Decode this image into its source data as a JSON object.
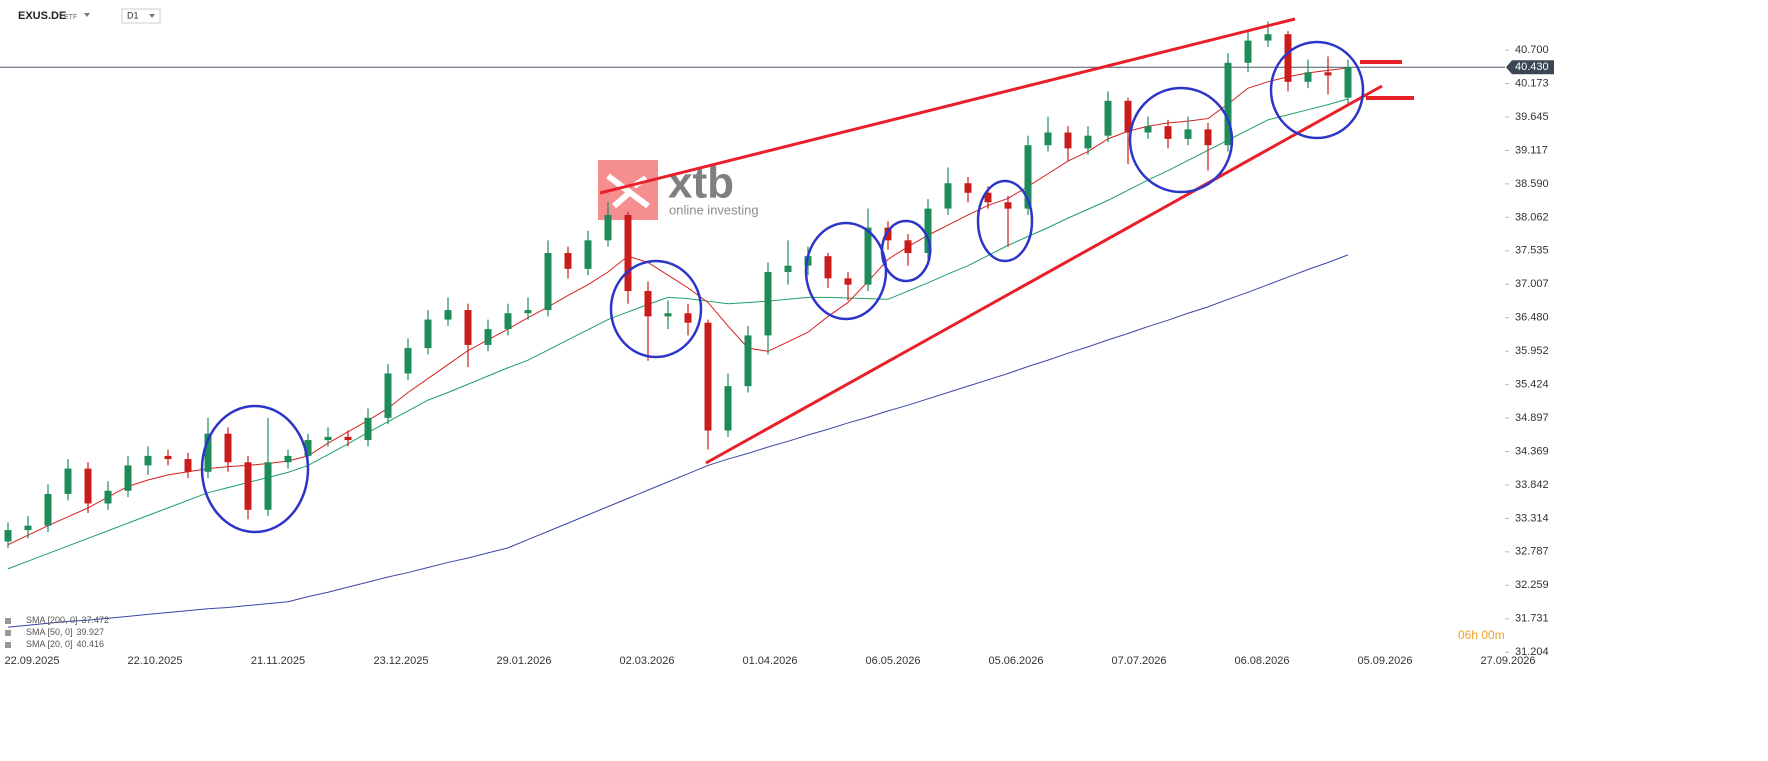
{
  "chart_data": {
    "type": "candlestick",
    "symbol": "EXUS.DE",
    "instrument_type": "ETF",
    "interval": "D1",
    "watermark": "xtb",
    "watermark_subtitle": "online investing",
    "countdown": "06h 00m",
    "up_color": "#1e8c5a",
    "down_color": "#cc1b1b",
    "ylim": [
      31.16,
      41.49
    ],
    "yticks": [
      {
        "value": 40.7,
        "label": "40.700"
      },
      {
        "value": 40.173,
        "label": "40.173"
      },
      {
        "value": 39.645,
        "label": "39.645"
      },
      {
        "value": 39.117,
        "label": "39.117"
      },
      {
        "value": 38.59,
        "label": "38.590"
      },
      {
        "value": 38.062,
        "label": "38.062"
      },
      {
        "value": 37.535,
        "label": "37.535"
      },
      {
        "value": 37.007,
        "label": "37.007"
      },
      {
        "value": 36.48,
        "label": "36.480"
      },
      {
        "value": 35.952,
        "label": "35.952"
      },
      {
        "value": 35.424,
        "label": "35.424"
      },
      {
        "value": 34.897,
        "label": "34.897"
      },
      {
        "value": 34.369,
        "label": "34.369"
      },
      {
        "value": 33.842,
        "label": "33.842"
      },
      {
        "value": 33.314,
        "label": "33.314"
      },
      {
        "value": 32.787,
        "label": "32.787"
      },
      {
        "value": 32.259,
        "label": "32.259"
      },
      {
        "value": 31.731,
        "label": "31.731"
      },
      {
        "value": 31.204,
        "label": "31.204"
      }
    ],
    "last_price": {
      "value": 40.43,
      "label": "40.430"
    },
    "x_labels": [
      "22.09.2025",
      "22.10.2025",
      "21.11.2025",
      "23.12.2025",
      "29.01.2026",
      "02.03.2026",
      "01.04.2026",
      "06.05.2026",
      "05.06.2026",
      "07.07.2026",
      "06.08.2026",
      "05.09.2026",
      "27.09.2026"
    ],
    "open": [
      32.95,
      33.13,
      33.2,
      33.7,
      34.1,
      33.55,
      33.75,
      34.15,
      34.3,
      34.25,
      34.05,
      34.65,
      34.2,
      33.45,
      34.2,
      34.3,
      34.55,
      34.6,
      34.55,
      34.9,
      35.6,
      36.0,
      36.45,
      36.6,
      36.05,
      36.3,
      36.55,
      36.6,
      37.5,
      37.25,
      37.7,
      38.1,
      36.9,
      36.5,
      36.55,
      36.4,
      34.7,
      35.4,
      36.2,
      37.2,
      37.3,
      37.45,
      37.1,
      37.0,
      37.9,
      37.7,
      37.5,
      38.2,
      38.6,
      38.45,
      38.3,
      38.2,
      39.2,
      39.4,
      39.15,
      39.35,
      39.9,
      39.4,
      39.5,
      39.3,
      39.45,
      39.2,
      40.5,
      40.85,
      40.95,
      40.2,
      40.35,
      39.95
    ],
    "high": [
      33.25,
      33.35,
      33.85,
      34.25,
      34.2,
      33.9,
      34.3,
      34.45,
      34.4,
      34.35,
      34.9,
      34.75,
      34.3,
      34.9,
      34.4,
      34.65,
      34.75,
      34.7,
      35.05,
      35.75,
      36.15,
      36.6,
      36.8,
      36.7,
      36.45,
      36.7,
      36.8,
      37.7,
      37.6,
      37.85,
      38.3,
      38.15,
      37.05,
      36.75,
      36.7,
      36.45,
      35.6,
      36.35,
      37.35,
      37.7,
      37.6,
      37.5,
      37.2,
      38.2,
      38.0,
      37.8,
      38.35,
      38.85,
      38.7,
      38.55,
      38.4,
      39.35,
      39.65,
      39.5,
      39.5,
      40.05,
      39.95,
      39.65,
      39.6,
      39.65,
      39.55,
      40.65,
      41.0,
      41.15,
      41.0,
      40.55,
      40.6,
      40.55
    ],
    "low": [
      32.85,
      33.0,
      33.1,
      33.6,
      33.4,
      33.45,
      33.65,
      34.0,
      34.15,
      33.95,
      33.95,
      34.05,
      33.3,
      33.35,
      34.1,
      34.2,
      34.45,
      34.45,
      34.45,
      34.8,
      35.5,
      35.9,
      36.35,
      35.7,
      35.95,
      36.2,
      36.45,
      36.5,
      37.1,
      37.15,
      37.6,
      36.7,
      35.8,
      36.3,
      36.2,
      34.4,
      34.6,
      35.3,
      35.9,
      37.0,
      37.15,
      36.95,
      36.75,
      36.9,
      37.55,
      37.3,
      37.4,
      38.1,
      38.3,
      38.2,
      37.6,
      38.1,
      39.1,
      38.95,
      39.05,
      39.25,
      38.9,
      39.3,
      39.15,
      39.2,
      38.8,
      39.1,
      40.35,
      40.75,
      40.05,
      40.1,
      40.0,
      39.85
    ],
    "close": [
      33.13,
      33.2,
      33.7,
      34.1,
      33.55,
      33.75,
      34.15,
      34.3,
      34.25,
      34.05,
      34.65,
      34.2,
      33.45,
      34.2,
      34.3,
      34.55,
      34.6,
      34.55,
      34.9,
      35.6,
      36.0,
      36.45,
      36.6,
      36.05,
      36.3,
      36.55,
      36.6,
      37.5,
      37.25,
      37.7,
      38.1,
      36.9,
      36.5,
      36.55,
      36.4,
      34.7,
      35.4,
      36.2,
      37.2,
      37.3,
      37.45,
      37.1,
      37.0,
      37.9,
      37.7,
      37.5,
      38.2,
      38.6,
      38.45,
      38.3,
      38.2,
      39.2,
      39.4,
      39.15,
      39.35,
      39.9,
      39.4,
      39.5,
      39.3,
      39.45,
      39.2,
      40.5,
      40.85,
      40.95,
      40.2,
      40.35,
      40.3,
      40.43
    ],
    "series": [
      {
        "name": "SMA [200, 0]",
        "last": 37.472,
        "color": "#3a47a6",
        "values": [
          31.6,
          31.63,
          31.66,
          31.69,
          31.71,
          31.74,
          31.77,
          31.8,
          31.83,
          31.86,
          31.89,
          31.91,
          31.94,
          31.97,
          32.0,
          32.08,
          32.15,
          32.23,
          32.31,
          32.39,
          32.46,
          32.54,
          32.62,
          32.69,
          32.77,
          32.85,
          32.98,
          33.11,
          33.24,
          33.37,
          33.5,
          33.63,
          33.76,
          33.89,
          34.02,
          34.15,
          34.25,
          34.34,
          34.44,
          34.53,
          34.63,
          34.72,
          34.82,
          34.91,
          35.01,
          35.1,
          35.2,
          35.3,
          35.4,
          35.5,
          35.6,
          35.71,
          35.81,
          35.92,
          36.02,
          36.13,
          36.23,
          36.34,
          36.44,
          36.55,
          36.65,
          36.77,
          36.88,
          37.0,
          37.12,
          37.24,
          37.35,
          37.47
        ]
      },
      {
        "name": "SMA [50, 0]",
        "last": 39.927,
        "color": "#1f9e6b",
        "values": [
          32.52,
          32.64,
          32.76,
          32.88,
          33.0,
          33.12,
          33.24,
          33.36,
          33.48,
          33.6,
          33.72,
          33.8,
          33.88,
          33.96,
          34.04,
          34.15,
          34.32,
          34.49,
          34.67,
          34.84,
          35.01,
          35.18,
          35.3,
          35.43,
          35.56,
          35.69,
          35.81,
          35.97,
          36.13,
          36.29,
          36.45,
          36.57,
          36.69,
          36.8,
          36.78,
          36.74,
          36.7,
          36.72,
          36.74,
          36.77,
          36.8,
          36.8,
          36.79,
          36.78,
          36.77,
          36.9,
          37.03,
          37.17,
          37.3,
          37.46,
          37.62,
          37.76,
          37.9,
          38.05,
          38.19,
          38.33,
          38.49,
          38.65,
          38.8,
          38.96,
          39.12,
          39.28,
          39.44,
          39.6,
          39.68,
          39.76,
          39.84,
          39.93
        ]
      },
      {
        "name": "SMA [20, 0]",
        "last": 40.416,
        "color": "#d42020",
        "values": [
          32.9,
          33.05,
          33.2,
          33.34,
          33.48,
          33.65,
          33.82,
          33.92,
          34.0,
          34.05,
          34.1,
          34.13,
          34.15,
          34.18,
          34.22,
          34.3,
          34.5,
          34.68,
          34.86,
          35.05,
          35.3,
          35.52,
          35.74,
          35.96,
          36.13,
          36.3,
          36.48,
          36.65,
          36.83,
          37.0,
          37.2,
          37.45,
          37.35,
          37.15,
          36.95,
          36.72,
          36.35,
          36.0,
          35.95,
          36.1,
          36.25,
          36.5,
          36.72,
          37.05,
          37.4,
          37.6,
          37.78,
          37.94,
          38.1,
          38.25,
          38.36,
          38.55,
          38.75,
          38.95,
          39.1,
          39.3,
          39.42,
          39.5,
          39.55,
          39.58,
          39.62,
          39.85,
          40.1,
          40.2,
          40.28,
          40.34,
          40.38,
          40.42
        ]
      }
    ]
  }
}
